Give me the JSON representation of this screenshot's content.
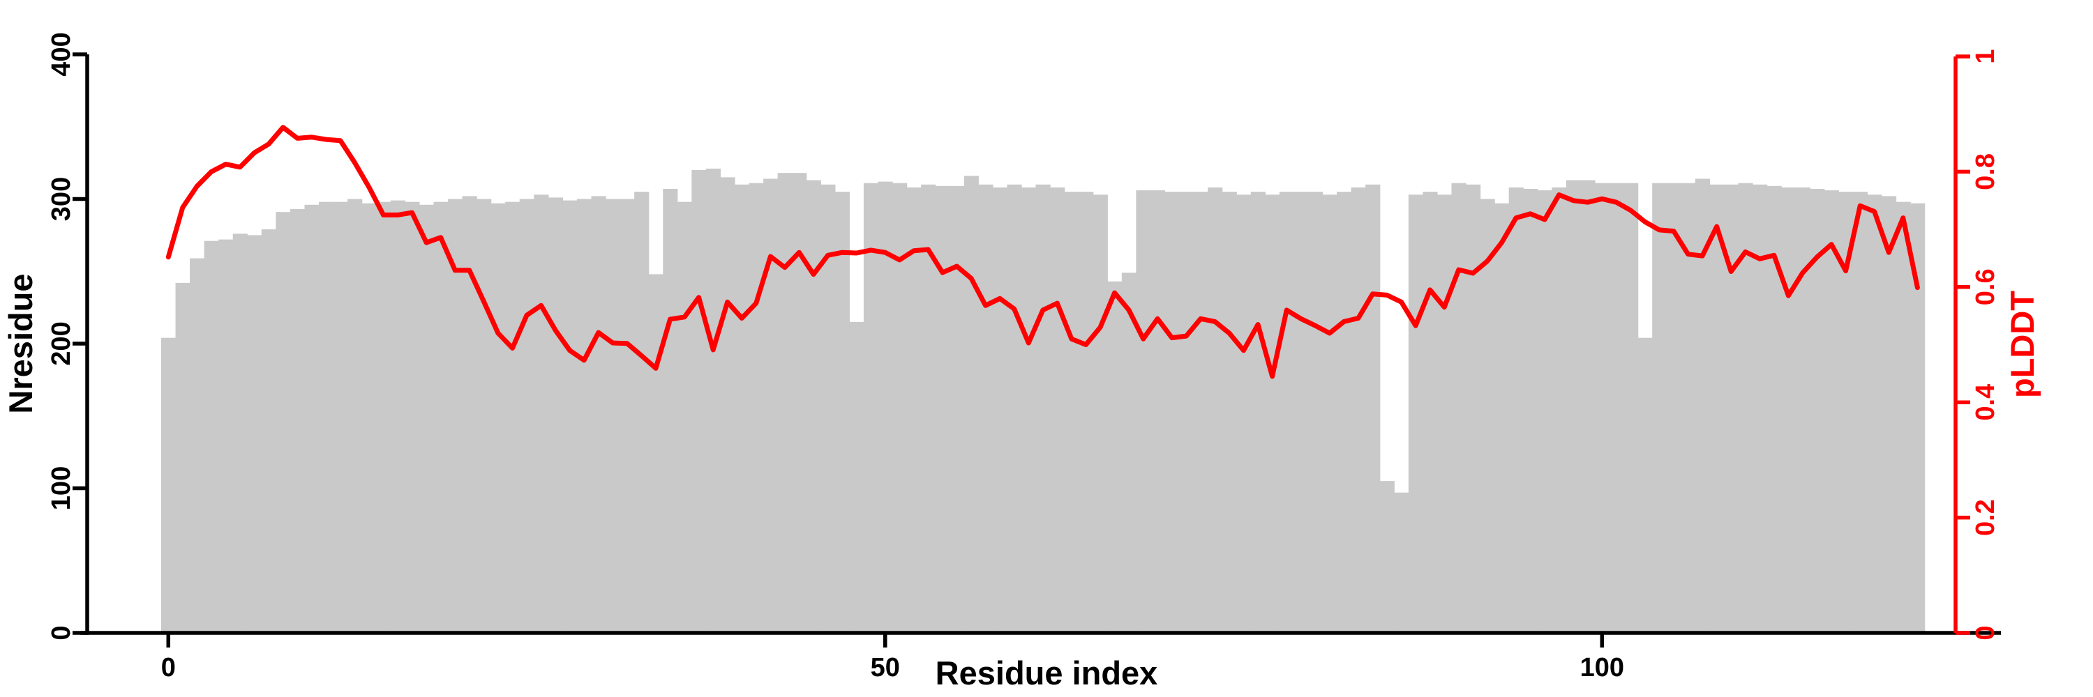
{
  "figure": {
    "background_color": "#ffffff",
    "bar_color": "#c9c9c9",
    "line_color": "#ff0000",
    "axis_color": "#000000",
    "right_axis_color": "#ff0000",
    "xlabel": "Residue index",
    "ylabel_left": "Nresidue",
    "ylabel_right": "pLDDT"
  },
  "chart_data": {
    "type": "bar",
    "title": "",
    "xlabel": "Residue index",
    "ylabel": "Nresidue",
    "ylabel_right": "pLDDT",
    "x": [
      0,
      1,
      2,
      3,
      4,
      5,
      6,
      7,
      8,
      9,
      10,
      11,
      12,
      13,
      14,
      15,
      16,
      17,
      18,
      19,
      20,
      21,
      22,
      23,
      24,
      25,
      26,
      27,
      28,
      29,
      30,
      31,
      32,
      33,
      34,
      35,
      36,
      37,
      38,
      39,
      40,
      41,
      42,
      43,
      44,
      45,
      46,
      47,
      48,
      49,
      50,
      51,
      52,
      53,
      54,
      55,
      56,
      57,
      58,
      59,
      60,
      61,
      62,
      63,
      64,
      65,
      66,
      67,
      68,
      69,
      70,
      71,
      72,
      73,
      74,
      75,
      76,
      77,
      78,
      79,
      80,
      81,
      82,
      83,
      84,
      85,
      86,
      87,
      88,
      89,
      90,
      91,
      92,
      93,
      94,
      95,
      96,
      97,
      98,
      99,
      100,
      101,
      102,
      103,
      104,
      105,
      106,
      107,
      108,
      109,
      110,
      111,
      112,
      113,
      114,
      115,
      116,
      117,
      118,
      119,
      120,
      121,
      122
    ],
    "xticks": [
      0,
      50,
      100
    ],
    "yticks_left": [
      0,
      100,
      200,
      300,
      400
    ],
    "yticks_right": [
      0,
      0.2,
      0.4,
      0.6,
      0.8,
      1
    ],
    "ylim_left": [
      0,
      400
    ],
    "ylim_right": [
      0,
      1
    ],
    "grid": false,
    "legend": "none",
    "series": [
      {
        "name": "Nresidue",
        "kind": "bar",
        "axis": "left",
        "color": "#c9c9c9",
        "values": [
          204,
          242,
          259,
          271,
          272,
          276,
          275,
          279,
          291,
          293,
          296,
          298,
          298,
          300,
          297,
          298,
          299,
          298,
          296,
          298,
          300,
          302,
          300,
          297,
          298,
          300,
          303,
          301,
          299,
          300,
          302,
          300,
          300,
          305,
          248,
          307,
          298,
          320,
          321,
          315,
          310,
          311,
          314,
          318,
          318,
          313,
          310,
          305,
          215,
          311,
          312,
          311,
          308,
          310,
          309,
          309,
          316,
          310,
          308,
          310,
          308,
          310,
          308,
          305,
          305,
          303,
          243,
          249,
          306,
          306,
          305,
          305,
          305,
          308,
          305,
          303,
          305,
          303,
          305,
          305,
          305,
          303,
          305,
          308,
          310,
          105,
          97,
          303,
          305,
          303,
          311,
          310,
          300,
          297,
          308,
          307,
          306,
          308,
          313,
          313,
          311,
          311,
          311,
          204,
          311,
          311,
          311,
          314,
          310,
          310,
          311,
          310,
          309,
          308,
          308,
          307,
          306,
          305,
          305,
          303,
          302,
          298,
          297
        ]
      },
      {
        "name": "pLDDT",
        "kind": "line",
        "axis": "right",
        "color": "#ff0000",
        "values": [
          0.652,
          0.738,
          0.775,
          0.8,
          0.813,
          0.808,
          0.833,
          0.848,
          0.877,
          0.858,
          0.86,
          0.856,
          0.854,
          0.816,
          0.773,
          0.725,
          0.725,
          0.729,
          0.677,
          0.686,
          0.629,
          0.629,
          0.575,
          0.52,
          0.494,
          0.551,
          0.568,
          0.525,
          0.49,
          0.473,
          0.521,
          0.503,
          0.502,
          0.481,
          0.459,
          0.544,
          0.548,
          0.582,
          0.491,
          0.574,
          0.546,
          0.572,
          0.653,
          0.634,
          0.66,
          0.622,
          0.655,
          0.66,
          0.659,
          0.664,
          0.66,
          0.647,
          0.663,
          0.665,
          0.625,
          0.636,
          0.615,
          0.568,
          0.58,
          0.562,
          0.503,
          0.56,
          0.572,
          0.51,
          0.5,
          0.53,
          0.59,
          0.56,
          0.51,
          0.545,
          0.512,
          0.515,
          0.545,
          0.54,
          0.52,
          0.49,
          0.535,
          0.445,
          0.56,
          0.545,
          0.533,
          0.52,
          0.54,
          0.546,
          0.588,
          0.586,
          0.574,
          0.533,
          0.595,
          0.565,
          0.63,
          0.624,
          0.645,
          0.677,
          0.72,
          0.727,
          0.717,
          0.76,
          0.75,
          0.747,
          0.753,
          0.747,
          0.733,
          0.713,
          0.699,
          0.697,
          0.657,
          0.654,
          0.705,
          0.627,
          0.661,
          0.649,
          0.655,
          0.585,
          0.625,
          0.652,
          0.674,
          0.628,
          0.741,
          0.731,
          0.66,
          0.72,
          0.599
        ]
      }
    ]
  }
}
